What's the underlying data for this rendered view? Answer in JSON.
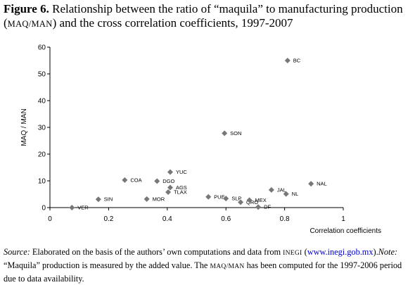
{
  "title": {
    "prefix": "Figure 6.",
    "text1": " Relationship between the ratio of “maquila” to manufacturing production (",
    "abbr": "MAQ/MAN",
    "text2": ") and the cross correlation coefficients, 1997-2007"
  },
  "note": {
    "source_label": "Source:",
    "source_text": " Elaborated on the basis of the authors’ own computations and data from ",
    "inegi": "INEGI",
    "open_paren": " (",
    "url": "www.inegi.gob.mx",
    "close": ").",
    "note_label": "Note:",
    "note_text1": " “Maquila” production is measured by the added value. The ",
    "note_abbr": "MAQ/MAN",
    "note_text2": " has been computed for the 1997-2006 period due to data availability."
  },
  "colors": {
    "marker": "#777777",
    "axis": "#000000"
  },
  "chart_data": {
    "type": "scatter",
    "xlabel": "Correlation coefficients",
    "ylabel": "MAQ / MAN",
    "xlim": [
      0,
      1
    ],
    "ylim": [
      0,
      60
    ],
    "xticks": [
      "0",
      "0.2",
      "0.4",
      "0.6",
      "0.8",
      "1"
    ],
    "yticks": [
      "0",
      "10",
      "20",
      "30",
      "40",
      "50",
      "60"
    ],
    "grid": false,
    "points": [
      {
        "label": "BC",
        "x": 0.81,
        "y": 55.0
      },
      {
        "label": "SON",
        "x": 0.595,
        "y": 27.8
      },
      {
        "label": "YUC",
        "x": 0.41,
        "y": 13.3
      },
      {
        "label": "COA",
        "x": 0.255,
        "y": 10.3
      },
      {
        "label": "DGO",
        "x": 0.365,
        "y": 9.9
      },
      {
        "label": "AGS",
        "x": 0.41,
        "y": 7.5
      },
      {
        "label": "TLAX",
        "x": 0.403,
        "y": 5.8
      },
      {
        "label": "MOR",
        "x": 0.33,
        "y": 3.2
      },
      {
        "label": "SIN",
        "x": 0.165,
        "y": 3.1
      },
      {
        "label": "VER",
        "x": 0.075,
        "y": 0.0
      },
      {
        "label": "PUE",
        "x": 0.54,
        "y": 4.0
      },
      {
        "label": "SLP",
        "x": 0.6,
        "y": 3.4
      },
      {
        "label": "QRO",
        "x": 0.65,
        "y": 2.0
      },
      {
        "label": "MEX",
        "x": 0.68,
        "y": 2.8
      },
      {
        "label": "DF",
        "x": 0.71,
        "y": 0.2
      },
      {
        "label": "JAL",
        "x": 0.755,
        "y": 6.6
      },
      {
        "label": "NL",
        "x": 0.805,
        "y": 5.1
      },
      {
        "label": "NAL",
        "x": 0.89,
        "y": 8.9
      }
    ]
  }
}
